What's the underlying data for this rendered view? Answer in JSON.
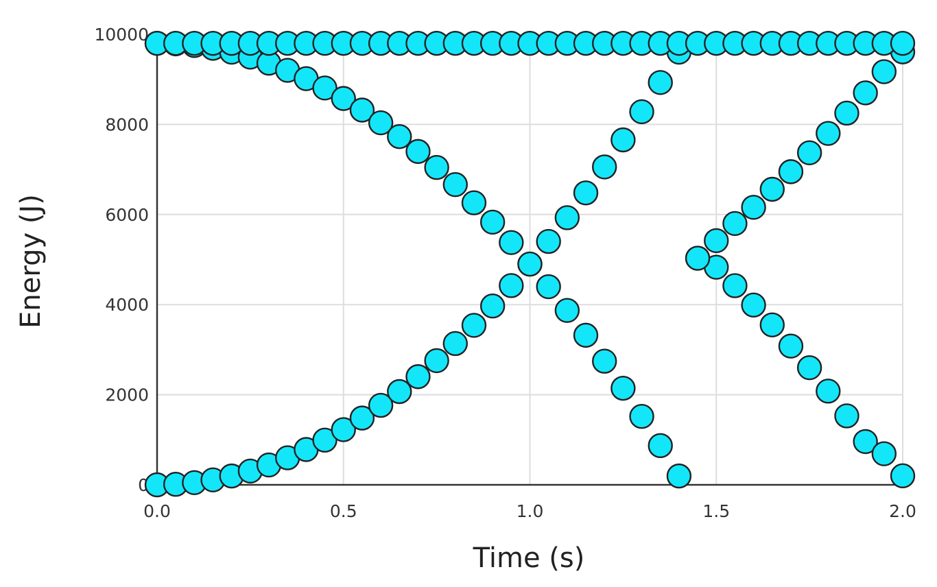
{
  "chart_data": {
    "type": "scatter",
    "title": "",
    "xlabel": "Time (s)",
    "ylabel": "Energy (J)",
    "xlim": [
      0,
      2
    ],
    "ylim": [
      0,
      10000
    ],
    "x_ticks": [
      0,
      0.5,
      1,
      1.5,
      2
    ],
    "x_tick_labels": [
      "0.0",
      "0.5",
      "1.0",
      "1.5",
      "2.0"
    ],
    "y_ticks": [
      0,
      2000,
      4000,
      6000,
      8000,
      10000
    ],
    "y_tick_labels": [
      "0",
      "2000",
      "4000",
      "6000",
      "8000",
      "10000"
    ],
    "grid": true,
    "legend": "none",
    "marker_color": "#14e6fa",
    "marker_edge_color": "#222222",
    "x": [
      0.0,
      0.05,
      0.1,
      0.15,
      0.2,
      0.25,
      0.3,
      0.35,
      0.4,
      0.45,
      0.5,
      0.55,
      0.6,
      0.65,
      0.7,
      0.75,
      0.8,
      0.85,
      0.9,
      0.95,
      1.0,
      1.05,
      1.1,
      1.15,
      1.2,
      1.25,
      1.3,
      1.35,
      1.4,
      1.45,
      1.5,
      1.55,
      1.6,
      1.65,
      1.7,
      1.75,
      1.8,
      1.85,
      1.9,
      1.95,
      2.0
    ],
    "series": [
      {
        "values": [
          9800,
          9788,
          9751,
          9690,
          9604,
          9494,
          9359,
          9200,
          9016,
          8808,
          8575,
          8318,
          8036,
          7730,
          7399,
          7044,
          6664,
          6260,
          5831,
          5378,
          4900,
          4398,
          3871,
          3320,
          2744,
          2144,
          1519,
          870,
          196,
          5030,
          4830,
          4420,
          3990,
          3550,
          3080,
          2600,
          2080,
          1530,
          960,
          690,
          200
        ]
      },
      {
        "values": [
          0,
          12,
          49,
          110,
          196,
          306,
          441,
          600,
          784,
          992,
          1225,
          1482,
          1764,
          2070,
          2401,
          2756,
          3136,
          3540,
          3969,
          4422,
          4900,
          5402,
          5929,
          6480,
          7056,
          7656,
          8281,
          8930,
          9604,
          5030,
          5420,
          5800,
          6160,
          6560,
          6950,
          7370,
          7800,
          8250,
          8700,
          9170,
          9610
        ]
      },
      {
        "values": [
          9800,
          9800,
          9800,
          9800,
          9800,
          9800,
          9800,
          9800,
          9800,
          9800,
          9800,
          9800,
          9800,
          9800,
          9800,
          9800,
          9800,
          9800,
          9800,
          9800,
          9800,
          9800,
          9800,
          9800,
          9800,
          9800,
          9800,
          9800,
          9800,
          9800,
          9800,
          9800,
          9800,
          9800,
          9800,
          9800,
          9800,
          9800,
          9800,
          9800,
          9800
        ]
      }
    ]
  }
}
